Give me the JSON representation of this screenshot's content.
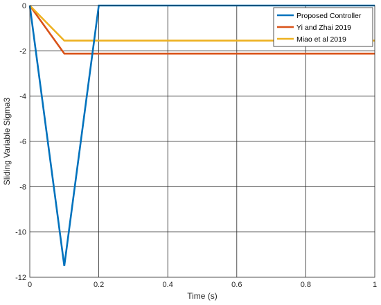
{
  "chart_data": {
    "type": "line",
    "xlabel": "Time (s)",
    "ylabel": "Sliding Variable Sigma3",
    "xlim": [
      0,
      1
    ],
    "ylim": [
      -12,
      0
    ],
    "xticks": [
      0,
      0.2,
      0.4,
      0.6,
      0.8,
      1
    ],
    "xtick_labels": [
      "0",
      "0.2",
      "0.4",
      "0.6",
      "0.8",
      "1"
    ],
    "yticks": [
      0,
      -2,
      -4,
      -6,
      -8,
      -10,
      -12
    ],
    "ytick_labels": [
      "0",
      "-2",
      "-4",
      "-6",
      "-8",
      "-10",
      "-12"
    ],
    "grid": true,
    "legend_position": "top-right",
    "series": [
      {
        "name": "Proposed Controller",
        "color": "#0072BD",
        "x": [
          0,
          0.1,
          0.2,
          1
        ],
        "y": [
          0,
          -11.5,
          0,
          0
        ]
      },
      {
        "name": "Yi and Zhai 2019",
        "color": "#D95319",
        "x": [
          0,
          0.1,
          1
        ],
        "y": [
          0,
          -2.12,
          -2.12
        ]
      },
      {
        "name": "Miao et al 2019",
        "color": "#EDB120",
        "x": [
          0,
          0.1,
          1
        ],
        "y": [
          0,
          -1.55,
          -1.55
        ]
      }
    ]
  }
}
